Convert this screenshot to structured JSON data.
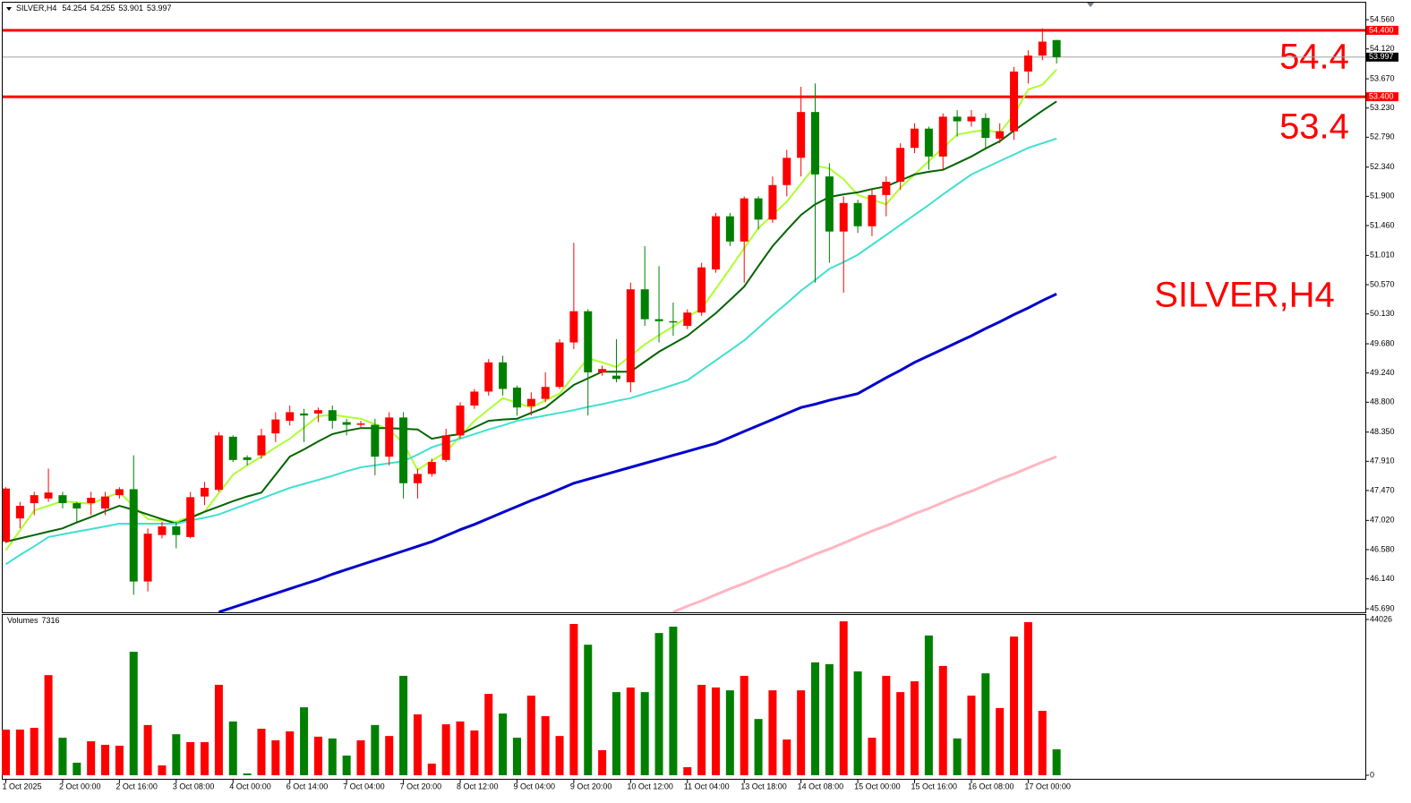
{
  "header": {
    "symbol": "SILVER,H4",
    "volume_label": "Volumes"
  },
  "chart_data": {
    "type": "candlestick",
    "categories": [
      "1 Oct 2025",
      null,
      null,
      null,
      "2 Oct 00:00",
      null,
      null,
      null,
      "2 Oct 16:00",
      null,
      null,
      null,
      "3 Oct 08:00",
      null,
      null,
      null,
      "4 Oct 00:00",
      null,
      null,
      null,
      "6 Oct 14:00",
      null,
      null,
      null,
      "7 Oct 04:00",
      null,
      null,
      null,
      "7 Oct 20:00",
      null,
      null,
      null,
      "8 Oct 12:00",
      null,
      null,
      null,
      "9 Oct 04:00",
      null,
      null,
      null,
      "9 Oct 20:00",
      null,
      null,
      null,
      "10 Oct 12:00",
      null,
      null,
      null,
      "11 Oct 04:00",
      null,
      null,
      null,
      "13 Oct 18:00",
      null,
      null,
      null,
      "14 Oct 08:00",
      null,
      null,
      null,
      "15 Oct 00:00",
      null,
      null,
      null,
      "15 Oct 16:00",
      null,
      null,
      null,
      "16 Oct 08:00",
      null,
      null,
      null,
      "17 Oct 00:00",
      null,
      null
    ],
    "open": [
      46.7,
      47.05,
      47.28,
      47.35,
      47.4,
      47.28,
      47.28,
      47.2,
      47.4,
      47.49,
      46.1,
      46.8,
      46.93,
      46.77,
      47.38,
      47.48,
      48.28,
      47.97,
      48.0,
      48.33,
      48.52,
      48.63,
      48.63,
      48.68,
      48.5,
      48.46,
      48.46,
      47.98,
      48.57,
      47.58,
      47.72,
      47.93,
      48.3,
      48.75,
      48.96,
      49.4,
      49.02,
      48.74,
      48.85,
      49.03,
      49.7,
      50.17,
      49.25,
      49.2,
      49.1,
      50.5,
      50.05,
      50.02,
      49.95,
      50.15,
      50.8,
      51.6,
      51.22,
      51.87,
      51.55,
      52.07,
      52.48,
      53.17,
      52.2,
      51.37,
      51.8,
      51.45,
      51.92,
      52.12,
      52.63,
      52.92,
      52.5,
      53.1,
      53.03,
      53.08,
      52.77,
      52.88,
      53.78,
      54.02,
      54.254
    ],
    "high": [
      47.52,
      47.3,
      47.45,
      47.8,
      47.45,
      47.3,
      47.45,
      47.45,
      47.52,
      48.0,
      46.9,
      47.0,
      47.0,
      47.45,
      47.6,
      48.35,
      48.3,
      48.0,
      48.4,
      48.65,
      48.75,
      48.7,
      48.72,
      48.75,
      48.55,
      48.52,
      48.55,
      48.65,
      48.65,
      47.8,
      47.95,
      48.4,
      48.8,
      49.0,
      49.45,
      49.5,
      49.05,
      48.95,
      49.25,
      49.75,
      51.2,
      50.2,
      49.35,
      49.75,
      50.6,
      51.15,
      50.85,
      50.3,
      50.2,
      50.9,
      51.65,
      51.65,
      51.9,
      51.9,
      52.2,
      52.6,
      53.55,
      53.6,
      52.4,
      51.9,
      51.85,
      52.0,
      52.2,
      52.7,
      53.0,
      52.95,
      53.15,
      53.2,
      53.2,
      53.15,
      53.0,
      53.85,
      54.1,
      54.43,
      54.255
    ],
    "low": [
      46.68,
      46.9,
      47.1,
      47.3,
      47.2,
      47.0,
      47.1,
      47.1,
      47.35,
      45.9,
      45.95,
      46.75,
      46.6,
      46.75,
      47.25,
      47.45,
      47.9,
      47.85,
      47.95,
      48.2,
      48.45,
      48.2,
      48.5,
      48.4,
      48.3,
      48.4,
      47.7,
      47.85,
      47.35,
      47.35,
      47.68,
      47.9,
      48.25,
      48.7,
      48.9,
      48.9,
      48.6,
      48.6,
      48.8,
      49.0,
      49.6,
      48.6,
      49.2,
      49.1,
      48.95,
      49.95,
      49.7,
      49.8,
      49.9,
      50.1,
      50.75,
      51.15,
      50.6,
      51.4,
      51.5,
      51.9,
      52.2,
      50.6,
      50.9,
      50.45,
      51.35,
      51.3,
      51.6,
      52.0,
      52.55,
      52.3,
      52.3,
      52.8,
      52.95,
      52.6,
      52.7,
      52.75,
      53.6,
      53.95,
      53.901
    ],
    "close": [
      47.5,
      47.24,
      47.4,
      47.44,
      47.28,
      47.2,
      47.36,
      47.38,
      47.49,
      46.1,
      46.82,
      46.93,
      46.8,
      47.37,
      47.51,
      48.3,
      47.93,
      47.93,
      48.3,
      48.54,
      48.65,
      48.6,
      48.68,
      48.52,
      48.46,
      48.48,
      47.98,
      48.57,
      47.58,
      47.72,
      47.9,
      48.3,
      48.75,
      48.96,
      49.4,
      49.0,
      48.72,
      48.85,
      49.03,
      49.7,
      50.17,
      49.25,
      49.3,
      49.15,
      50.5,
      50.05,
      50.02,
      50.0,
      50.15,
      50.83,
      51.6,
      51.22,
      51.87,
      51.55,
      52.07,
      52.48,
      53.17,
      52.23,
      51.37,
      51.8,
      51.45,
      51.92,
      52.12,
      52.63,
      52.92,
      52.5,
      53.1,
      53.03,
      53.1,
      52.78,
      52.88,
      53.78,
      54.02,
      54.23,
      53.997
    ],
    "up_color": "#ff0000",
    "down_color": "#008000",
    "ylim": [
      45.636,
      54.803
    ],
    "yticks": [
      {
        "value": 54.56,
        "label": "54.560"
      },
      {
        "value": 54.12,
        "label": "54.120"
      },
      {
        "value": 53.67,
        "label": "53.670"
      },
      {
        "value": 53.23,
        "label": "53.230"
      },
      {
        "value": 52.79,
        "label": "52.790"
      },
      {
        "value": 52.34,
        "label": "52.340"
      },
      {
        "value": 51.9,
        "label": "51.900"
      },
      {
        "value": 51.46,
        "label": "51.460"
      },
      {
        "value": 51.01,
        "label": "51.010"
      },
      {
        "value": 50.57,
        "label": "50.570"
      },
      {
        "value": 50.13,
        "label": "50.130"
      },
      {
        "value": 49.68,
        "label": "49.680"
      },
      {
        "value": 49.24,
        "label": "49.240"
      },
      {
        "value": 48.8,
        "label": "48.800"
      },
      {
        "value": 48.35,
        "label": "48.350"
      },
      {
        "value": 47.91,
        "label": "47.910"
      },
      {
        "value": 47.47,
        "label": "47.470"
      },
      {
        "value": 47.02,
        "label": "47.020"
      },
      {
        "value": 46.58,
        "label": "46.580"
      },
      {
        "value": 46.14,
        "label": "46.140"
      },
      {
        "value": 45.69,
        "label": "45.690"
      }
    ],
    "levels": [
      {
        "value": 54.4,
        "label": "54.400"
      },
      {
        "value": 53.4,
        "label": "53.400"
      }
    ],
    "level_color": "#ff0000",
    "annotations": [
      "54.4",
      "53.4",
      "SILVER,H4"
    ],
    "moving_averages": [
      {
        "color": "#adff2f",
        "values": [
          46.57,
          46.87,
          47.17,
          47.24,
          47.31,
          47.29,
          47.27,
          47.36,
          47.44,
          47.24,
          47.04,
          47.02,
          47.0,
          47.08,
          47.15,
          47.43,
          47.71,
          47.85,
          47.98,
          48.12,
          48.25,
          48.42,
          48.59,
          48.61,
          48.58,
          48.55,
          48.47,
          48.39,
          48.18,
          47.78,
          47.92,
          48.05,
          48.29,
          48.52,
          48.69,
          48.86,
          48.79,
          48.72,
          48.83,
          48.93,
          49.2,
          49.46,
          49.4,
          49.33,
          49.5,
          49.67,
          49.81,
          49.94,
          50.08,
          50.21,
          50.51,
          50.81,
          51.12,
          51.42,
          51.62,
          51.82,
          52.09,
          52.36,
          52.32,
          52.16,
          51.92,
          51.85,
          51.78,
          52.03,
          52.23,
          52.43,
          52.63,
          52.83,
          52.87,
          52.9,
          52.86,
          53.13,
          53.51,
          53.58,
          53.81
        ]
      },
      {
        "color": "#006400",
        "values": [
          46.7,
          46.75,
          46.8,
          46.85,
          46.9,
          46.99,
          47.07,
          47.16,
          47.24,
          47.18,
          47.11,
          47.04,
          46.97,
          47.06,
          47.15,
          47.23,
          47.31,
          47.38,
          47.44,
          47.71,
          47.98,
          48.09,
          48.21,
          48.32,
          48.37,
          48.41,
          48.41,
          48.41,
          48.4,
          48.39,
          48.25,
          48.29,
          48.32,
          48.42,
          48.52,
          48.54,
          48.55,
          48.64,
          48.72,
          48.89,
          49.06,
          49.16,
          49.26,
          49.26,
          49.26,
          49.41,
          49.56,
          49.68,
          49.8,
          49.97,
          50.14,
          50.34,
          50.54,
          50.85,
          51.15,
          51.39,
          51.62,
          51.78,
          51.89,
          51.93,
          51.96,
          52.01,
          52.05,
          52.14,
          52.23,
          52.27,
          52.3,
          52.4,
          52.5,
          52.62,
          52.73,
          52.89,
          53.04,
          53.19,
          53.33
        ]
      },
      {
        "color": "#40e0d0",
        "values": [
          46.36,
          46.5,
          46.63,
          46.77,
          46.81,
          46.85,
          46.89,
          46.93,
          46.97,
          46.97,
          46.97,
          46.97,
          46.97,
          47.02,
          47.06,
          47.11,
          47.19,
          47.27,
          47.35,
          47.43,
          47.51,
          47.57,
          47.63,
          47.69,
          47.76,
          47.82,
          47.85,
          47.88,
          47.91,
          48.01,
          48.12,
          48.19,
          48.25,
          48.32,
          48.39,
          48.45,
          48.52,
          48.56,
          48.6,
          48.64,
          48.68,
          48.73,
          48.77,
          48.82,
          48.86,
          48.93,
          48.99,
          49.06,
          49.13,
          49.28,
          49.43,
          49.58,
          49.73,
          49.92,
          50.11,
          50.29,
          50.48,
          50.64,
          50.81,
          50.91,
          51.02,
          51.17,
          51.32,
          51.47,
          51.62,
          51.77,
          51.93,
          52.08,
          52.23,
          52.33,
          52.43,
          52.53,
          52.63,
          52.7,
          52.77
        ]
      },
      {
        "color": "#0000cd",
        "values": [
          null,
          null,
          null,
          null,
          null,
          null,
          null,
          null,
          null,
          null,
          null,
          null,
          null,
          null,
          null,
          45.64,
          45.71,
          45.78,
          45.85,
          45.92,
          45.99,
          46.06,
          46.13,
          46.21,
          46.28,
          46.35,
          46.42,
          46.49,
          46.56,
          46.63,
          46.7,
          46.79,
          46.88,
          46.96,
          47.05,
          47.14,
          47.23,
          47.32,
          47.4,
          47.49,
          47.58,
          47.64,
          47.7,
          47.76,
          47.82,
          47.88,
          47.94,
          48.0,
          48.06,
          48.12,
          48.18,
          48.27,
          48.36,
          48.45,
          48.54,
          48.63,
          48.72,
          48.77,
          48.83,
          48.88,
          48.93,
          49.05,
          49.17,
          49.28,
          49.4,
          49.5,
          49.6,
          49.7,
          49.8,
          49.91,
          50.01,
          50.12,
          50.22,
          50.33,
          50.43
        ]
      },
      {
        "color": "#ffb6c1",
        "values": [
          null,
          null,
          null,
          null,
          null,
          null,
          null,
          null,
          null,
          null,
          null,
          null,
          null,
          null,
          null,
          null,
          null,
          null,
          null,
          null,
          null,
          null,
          null,
          null,
          null,
          null,
          null,
          null,
          null,
          null,
          null,
          null,
          null,
          null,
          null,
          null,
          null,
          null,
          null,
          null,
          null,
          null,
          null,
          null,
          null,
          null,
          null,
          45.64,
          45.73,
          45.81,
          45.9,
          45.99,
          46.07,
          46.16,
          46.25,
          46.33,
          46.42,
          46.51,
          46.59,
          46.68,
          46.77,
          46.86,
          46.94,
          47.03,
          47.12,
          47.2,
          47.29,
          47.38,
          47.46,
          47.55,
          47.64,
          47.72,
          47.81,
          47.9,
          47.98
        ]
      }
    ],
    "volumes": [
      12900,
      12900,
      13400,
      28300,
      10600,
      3540,
      9600,
      8600,
      8350,
      34900,
      14200,
      2780,
      11600,
      9360,
      9360,
      25550,
      15200,
      500,
      13150,
      9870,
      12400,
      19200,
      10900,
      10400,
      5560,
      9870,
      14200,
      11100,
      28100,
      17200,
      3290,
      14400,
      15200,
      12650,
      23000,
      17450,
      10600,
      22500,
      16700,
      11100,
      42760,
      36900,
      7080,
      23500,
      24800,
      23500,
      40200,
      42000,
      2280,
      25550,
      24800,
      24000,
      28100,
      15900,
      24000,
      10100,
      24000,
      31900,
      31400,
      43500,
      29350,
      10600,
      28100,
      23500,
      26550,
      39500,
      30900,
      10400,
      22500,
      28800,
      19000,
      39200,
      43260,
      18200,
      7316
    ],
    "vlim": [
      0,
      44026
    ],
    "vticks": [
      0,
      44026
    ]
  }
}
